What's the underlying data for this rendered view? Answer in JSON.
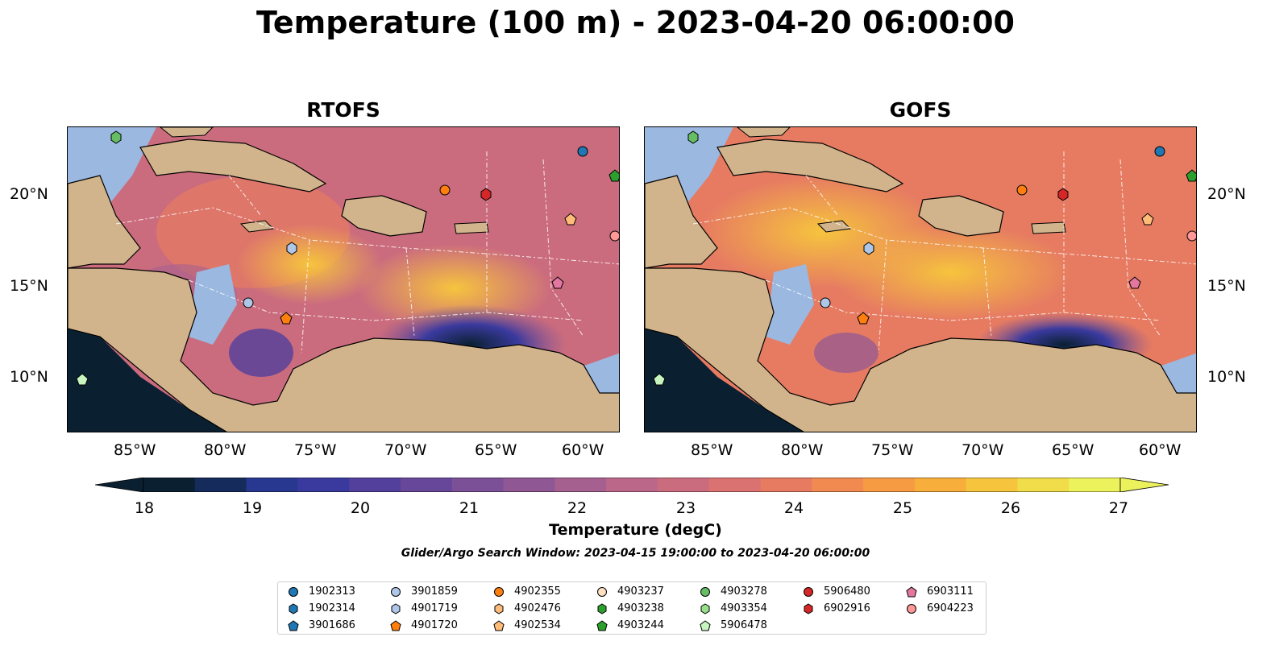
{
  "title": "Temperature (100 m) - 2023-04-20 06:00:00",
  "panels": [
    {
      "title": "RTOFS"
    },
    {
      "title": "GOFS"
    }
  ],
  "lon_labels": [
    "85°W",
    "80°W",
    "75°W",
    "70°W",
    "65°W",
    "60°W"
  ],
  "lat_labels": [
    "20°N",
    "15°N",
    "10°N"
  ],
  "colorbar": {
    "label": "Temperature (degC)",
    "ticks": [
      "18",
      "19",
      "20",
      "21",
      "22",
      "23",
      "24",
      "25",
      "26",
      "27"
    ],
    "colors": [
      "#0a2031",
      "#142b5b",
      "#283890",
      "#3a3a9e",
      "#52409c",
      "#67479a",
      "#7b5097",
      "#8f5894",
      "#a66090",
      "#ba6789",
      "#cb6c7e",
      "#d97271",
      "#e67b62",
      "#f08a50",
      "#f69b41",
      "#f8ae3b",
      "#f6c43d",
      "#f1dc49",
      "#ecf25c"
    ]
  },
  "search_window": "Glider/Argo Search Window: 2023-04-15 19:00:00 to 2023-04-20 06:00:00",
  "legend": [
    {
      "label": "1902313",
      "color": "#1f77b4",
      "marker": "circle"
    },
    {
      "label": "1902314",
      "color": "#1f77b4",
      "marker": "hexagon"
    },
    {
      "label": "3901686",
      "color": "#1f77b4",
      "marker": "pentagon"
    },
    {
      "label": "3901859",
      "color": "#aec7e8",
      "marker": "circle"
    },
    {
      "label": "4901719",
      "color": "#aec7e8",
      "marker": "hexagon"
    },
    {
      "label": "4901720",
      "color": "#ff7f0e",
      "marker": "pentagon"
    },
    {
      "label": "4902355",
      "color": "#ff7f0e",
      "marker": "circle"
    },
    {
      "label": "4902476",
      "color": "#ffbb78",
      "marker": "hexagon"
    },
    {
      "label": "4902534",
      "color": "#ffbb78",
      "marker": "pentagon"
    },
    {
      "label": "4903237",
      "color": "#ffe0c2",
      "marker": "circle"
    },
    {
      "label": "4903238",
      "color": "#2ca02c",
      "marker": "hexagon"
    },
    {
      "label": "4903244",
      "color": "#2ca02c",
      "marker": "pentagon"
    },
    {
      "label": "4903278",
      "color": "#66bd63",
      "marker": "circle"
    },
    {
      "label": "4903354",
      "color": "#98df8a",
      "marker": "hexagon"
    },
    {
      "label": "5906478",
      "color": "#c7f5c0",
      "marker": "pentagon"
    },
    {
      "label": "5906480",
      "color": "#d62728",
      "marker": "circle"
    },
    {
      "label": "6902916",
      "color": "#d62728",
      "marker": "hexagon"
    },
    {
      "label": "6903111",
      "color": "#e377a0",
      "marker": "pentagon"
    },
    {
      "label": "6904223",
      "color": "#ff9896",
      "marker": "circle"
    }
  ],
  "map_colors": {
    "land": "#d2b48c",
    "shelf": "#9ab8e0",
    "outline": "#000000"
  }
}
